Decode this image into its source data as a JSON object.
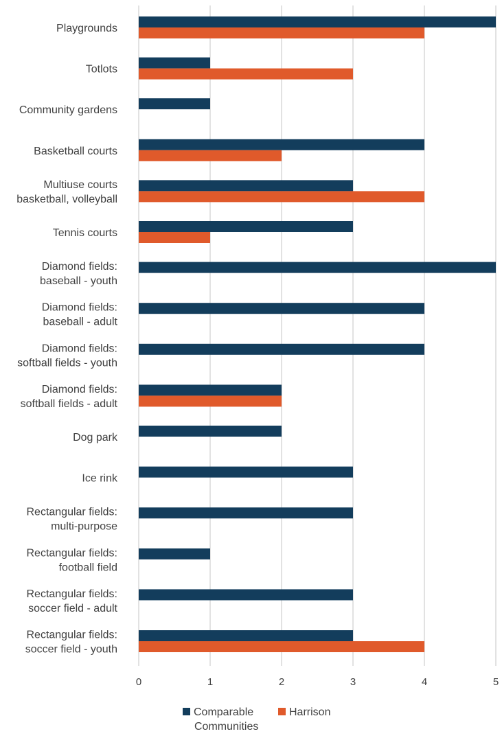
{
  "chart_data": {
    "type": "bar",
    "orientation": "horizontal",
    "categories": [
      [
        "Playgrounds"
      ],
      [
        "Totlots"
      ],
      [
        "Community gardens"
      ],
      [
        "Basketball courts"
      ],
      [
        "Multiuse courts",
        "basketball, volleyball"
      ],
      [
        "Tennis courts"
      ],
      [
        "Diamond fields:",
        "baseball - youth"
      ],
      [
        "Diamond fields:",
        "baseball - adult"
      ],
      [
        "Diamond fields:",
        "softball fields - youth"
      ],
      [
        "Diamond fields:",
        "softball fields - adult"
      ],
      [
        "Dog park"
      ],
      [
        "Ice rink"
      ],
      [
        "Rectangular fields:",
        "multi-purpose"
      ],
      [
        "Rectangular fields:",
        "football field"
      ],
      [
        "Rectangular fields:",
        "soccer field - adult"
      ],
      [
        "Rectangular fields:",
        "soccer field - youth"
      ]
    ],
    "series": [
      {
        "name": [
          "Comparable",
          "Communities"
        ],
        "color": "#133d5c",
        "values": [
          5,
          1,
          1,
          4,
          3,
          3,
          5,
          4,
          4,
          2,
          2,
          3,
          3,
          1,
          3,
          3
        ]
      },
      {
        "name": [
          "Harrison"
        ],
        "color": "#e05a2b",
        "values": [
          4,
          3,
          0,
          2,
          4,
          1,
          0,
          0,
          0,
          2,
          0,
          0,
          0,
          0,
          0,
          4
        ]
      }
    ],
    "xlim": [
      0,
      5
    ],
    "xticks": [
      "0",
      "1",
      "2",
      "3",
      "4",
      "5"
    ],
    "grid": true,
    "legend_position": "bottom",
    "title": "",
    "xlabel": "",
    "ylabel": ""
  }
}
